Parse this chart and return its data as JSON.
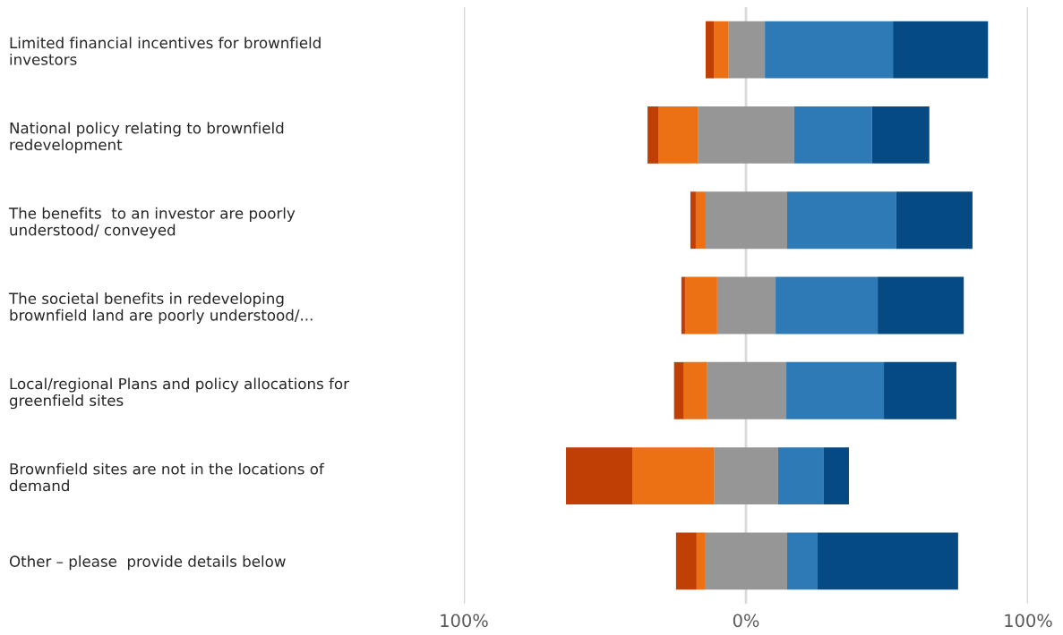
{
  "chart_data": {
    "type": "bar",
    "orientation": "horizontal",
    "stacked": true,
    "categories": [
      "Limited financial incentives for brownfield\ninvestors",
      "National policy relating to brownfield\nredevelopment",
      "The benefits  to an investor are poorly\nunderstood/ conveyed",
      "The societal benefits in redeveloping\nbrownfield land are poorly understood/...",
      "Local/regional Plans and policy allocations for\ngreenfield sites",
      "Brownfield sites are not in the locations of\ndemand",
      "Other – please  provide details below"
    ],
    "series": [
      {
        "color": "#969696",
        "values": [
          -6.3,
          -17.1,
          -14.3,
          -10.2,
          -13.7,
          -11.4,
          -14.6
        ]
      },
      {
        "color": "#ec7014",
        "values": [
          -5.1,
          -14.0,
          -3.5,
          -11.4,
          -8.3,
          -28.9,
          -2.9
        ]
      },
      {
        "color": "#bf3f05",
        "values": [
          -2.9,
          -3.8,
          -1.9,
          -1.3,
          -3.5,
          -23.5,
          -7.3
        ]
      },
      {
        "color": "#969696",
        "values": [
          6.7,
          17.1,
          14.6,
          10.5,
          14.3,
          11.4,
          14.6
        ]
      },
      {
        "color": "#2e7ab6",
        "values": [
          45.4,
          27.6,
          38.7,
          36.2,
          34.6,
          16.2,
          10.8
        ]
      },
      {
        "color": "#054a83",
        "values": [
          33.7,
          20.3,
          27.0,
          30.5,
          25.7,
          8.9,
          49.8
        ]
      }
    ],
    "xlim": [
      -100,
      100
    ],
    "xticks": [
      {
        "value": -100,
        "label": "100%"
      },
      {
        "value": 0,
        "label": "0%"
      },
      {
        "value": 100,
        "label": "100%"
      }
    ],
    "grid": "x",
    "legend": false
  }
}
